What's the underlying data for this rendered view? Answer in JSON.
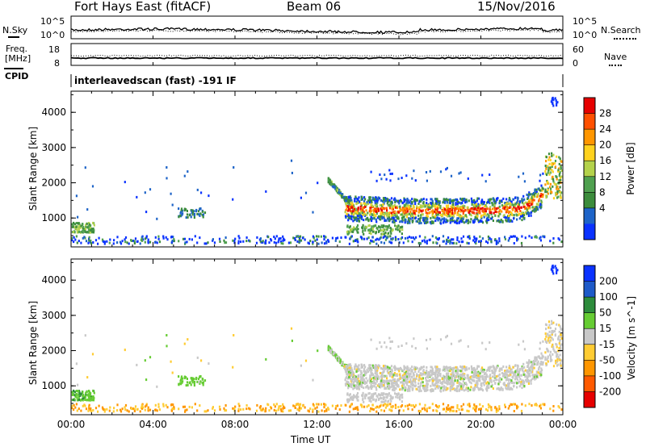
{
  "header": {
    "station": "Fort Hays East (fitACF)",
    "beam": "Beam 06",
    "date": "15/Nov/2016"
  },
  "noise_panel": {
    "left_label": "N.Sky",
    "right_label": "N.Search",
    "left_ticks": [
      "10^5",
      "10^0"
    ],
    "right_ticks": [
      "10^5",
      "10^0"
    ]
  },
  "freq_panel": {
    "left_label_top": "Freq.",
    "left_label_unit": "[MHz]",
    "left_ticks": [
      "18",
      "8"
    ],
    "right_label": "Nave",
    "right_ticks": [
      "60",
      "0"
    ]
  },
  "cpid_panel": {
    "label": "CPID",
    "program": "interleavedscan (fast) -191 IF"
  },
  "colors": {
    "power_scale": [
      "#0a32ff",
      "#1e64c8",
      "#3c8c3c",
      "#4fa04f",
      "#b4d24b",
      "#ffd21e",
      "#ff9600",
      "#ff5000",
      "#e60000"
    ],
    "velocity_scale": [
      "#0a32ff",
      "#1e5ac8",
      "#2d8c3c",
      "#66cc33",
      "#c8c8c8",
      "#ffcc33",
      "#ff9600",
      "#ff5a00",
      "#e60000"
    ]
  },
  "chart_data": [
    {
      "type": "heatmap",
      "title": "Power",
      "xlabel": "",
      "ylabel": "Slant Range [km]",
      "x_ticks": [
        "00:00",
        "04:00",
        "08:00",
        "12:00",
        "16:00",
        "20:00",
        "00:00"
      ],
      "xlim_hours": [
        0,
        24
      ],
      "y_ticks": [
        1000,
        2000,
        3000,
        4000
      ],
      "ylim": [
        180,
        4600
      ],
      "colorbar": {
        "label": "Power [dB]",
        "ticks": [
          4,
          8,
          12,
          16,
          20,
          24,
          28
        ],
        "range": [
          0,
          30
        ]
      }
    },
    {
      "type": "heatmap",
      "title": "Velocity",
      "xlabel": "Time UT",
      "ylabel": "Slant Range [km]",
      "x_ticks": [
        "00:00",
        "04:00",
        "08:00",
        "12:00",
        "16:00",
        "20:00",
        "00:00"
      ],
      "xlim_hours": [
        0,
        24
      ],
      "y_ticks": [
        1000,
        2000,
        3000,
        4000
      ],
      "ylim": [
        180,
        4600
      ],
      "colorbar": {
        "label": "Velocity [m s^-1]",
        "ticks": [
          "200",
          "100",
          "50",
          "15",
          "-15",
          "-50",
          "-100",
          "-200"
        ]
      }
    }
  ]
}
